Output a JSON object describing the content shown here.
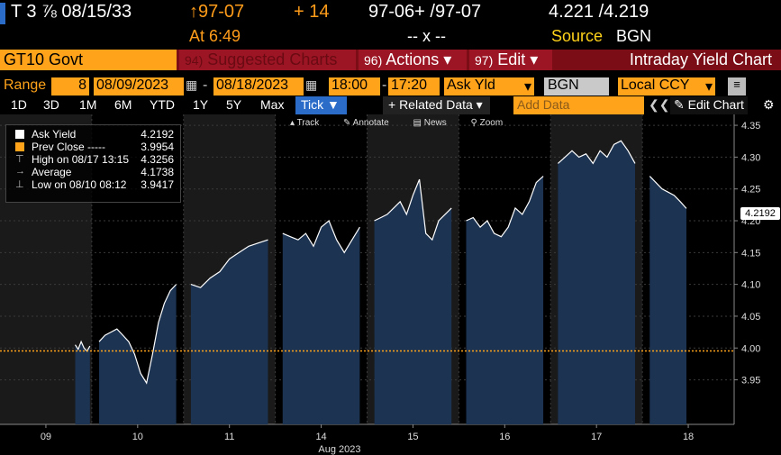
{
  "quote": {
    "ticker": "T 3 ⅞ 08/15/33",
    "price": "↑97-07",
    "change": "+ 14",
    "bid_ask": "97-06+ /97-07",
    "yields": "4.221 /4.219"
  },
  "time_row": {
    "at": "At 6:49",
    "dash": "-- x --",
    "source_label": "Source",
    "source_value": "BGN"
  },
  "function_bar": {
    "security": "GT10 Govt",
    "suggested": {
      "num": "94)",
      "label": "Suggested Charts"
    },
    "actions": {
      "num": "96)",
      "label": "Actions ▾"
    },
    "edit": {
      "num": "97)",
      "label": "Edit ▾"
    },
    "title": "Intraday Yield Chart"
  },
  "range": {
    "label": "Range",
    "period": "8",
    "from": "08/09/2023",
    "to": "08/18/2023",
    "time_from": "18:00",
    "time_to": "17:20",
    "field": "Ask Yld",
    "field_arrow": "▾",
    "source": "BGN",
    "currency": "Local CCY",
    "currency_arrow": "▾",
    "menu": "≡"
  },
  "toolbar": {
    "periods": [
      "1D",
      "3D",
      "1M",
      "6M",
      "YTD",
      "1Y",
      "5Y",
      "Max"
    ],
    "tick": "Tick ▼",
    "related": "+ Related Data ▾",
    "add_placeholder": "Add Data",
    "collapse": "❮❮",
    "edit_chart": "✎ Edit Chart",
    "settings": "⚙"
  },
  "annotation_bar": [
    "Track",
    "Annotate",
    "News",
    "Zoom"
  ],
  "legend": {
    "items": [
      {
        "name": "Ask Yield",
        "value": "4.2192",
        "swatch": "#ffffff"
      },
      {
        "name": "Prev Close -----",
        "value": "3.9954",
        "swatch": "#ffa31a"
      },
      {
        "name": "High on 08/17 13:15",
        "value": "4.3256",
        "mark": "⊤"
      },
      {
        "name": "Average",
        "value": "4.1738",
        "mark": "→"
      },
      {
        "name": "Low on 08/10 08:12",
        "value": "3.9417",
        "mark": "⊥"
      }
    ]
  },
  "last_value": "4.2192",
  "chart_data": {
    "type": "area",
    "x_label": "Aug 2023",
    "x_ticks": [
      "09",
      "10",
      "11",
      "14",
      "15",
      "16",
      "17",
      "18"
    ],
    "y_ticks": [
      "4.35",
      "4.30",
      "4.25",
      "4.20",
      "4.15",
      "4.10",
      "4.05",
      "4.00",
      "3.95"
    ],
    "ylim": [
      3.88,
      4.36
    ],
    "prev_close": 3.9954,
    "colors": {
      "fill": "#1c3352",
      "line": "#ffffff",
      "prev_close": "#ffa31a",
      "grid": "#3a3a3a",
      "session_bg": "#1a1a1a"
    },
    "sessions": [
      {
        "day": "09",
        "values": [
          4.005,
          3.998,
          4.01,
          4.0,
          3.995,
          4.003
        ]
      },
      {
        "day": "10",
        "values": [
          4.01,
          4.02,
          4.025,
          4.03,
          4.02,
          4.01,
          3.99,
          3.96,
          3.945,
          3.99,
          4.04,
          4.07,
          4.09,
          4.1
        ]
      },
      {
        "day": "11",
        "values": [
          4.1,
          4.095,
          4.11,
          4.12,
          4.14,
          4.15,
          4.16,
          4.165,
          4.17
        ]
      },
      {
        "day": "14",
        "values": [
          4.18,
          4.175,
          4.17,
          4.18,
          4.16,
          4.19,
          4.2,
          4.17,
          4.15,
          4.17,
          4.19
        ]
      },
      {
        "day": "15",
        "values": [
          4.2,
          4.205,
          4.21,
          4.22,
          4.23,
          4.21,
          4.24,
          4.265,
          4.18,
          4.17,
          4.2,
          4.21,
          4.22
        ]
      },
      {
        "day": "16",
        "values": [
          4.2,
          4.205,
          4.19,
          4.2,
          4.18,
          4.175,
          4.19,
          4.22,
          4.21,
          4.23,
          4.26,
          4.27
        ]
      },
      {
        "day": "17",
        "values": [
          4.29,
          4.3,
          4.31,
          4.3,
          4.305,
          4.29,
          4.31,
          4.3,
          4.32,
          4.3256,
          4.31,
          4.29
        ]
      },
      {
        "day": "18",
        "values": [
          4.27,
          4.26,
          4.25,
          4.245,
          4.24,
          4.23,
          4.2192
        ]
      }
    ]
  }
}
